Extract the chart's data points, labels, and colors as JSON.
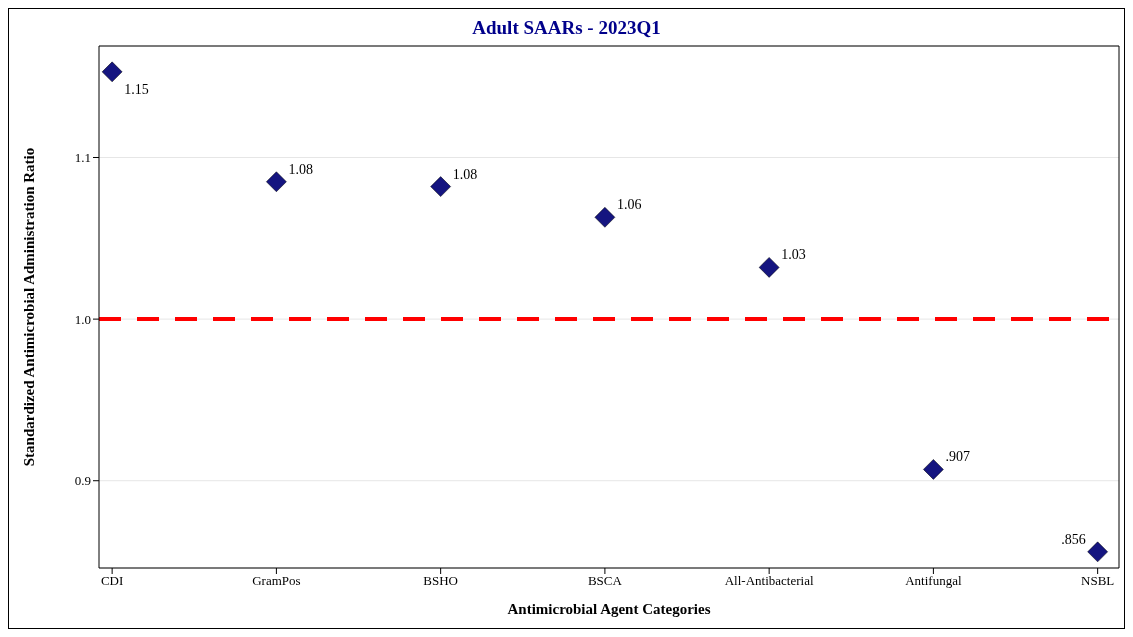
{
  "chart_data": {
    "type": "scatter",
    "title": "Adult SAARs - 2023Q1",
    "xlabel": "Antimicrobial Agent Categories",
    "ylabel": "Standardized Antimicrobial Administration Ratio",
    "categories": [
      "CDI",
      "GramPos",
      "BSHO",
      "BSCA",
      "All-Antibacterial",
      "Antifungal",
      "NSBL"
    ],
    "values": [
      1.153,
      1.085,
      1.082,
      1.063,
      1.032,
      0.907,
      0.856
    ],
    "value_labels": [
      "1.15",
      "1.08",
      "1.08",
      "1.06",
      "1.03",
      ".907",
      ".856"
    ],
    "color": "#151580",
    "marker": "diamond",
    "ylim": [
      0.846,
      1.169
    ],
    "yticks": [
      {
        "value": 0.9,
        "label": "0.9"
      },
      {
        "value": 1.0,
        "label": "1.0"
      },
      {
        "value": 1.1,
        "label": "1.1"
      }
    ],
    "grid": "y",
    "ref_lines": [
      {
        "axis": "y",
        "value": 1.0,
        "color": "#ff0000",
        "line_style": "dashed"
      }
    ]
  }
}
